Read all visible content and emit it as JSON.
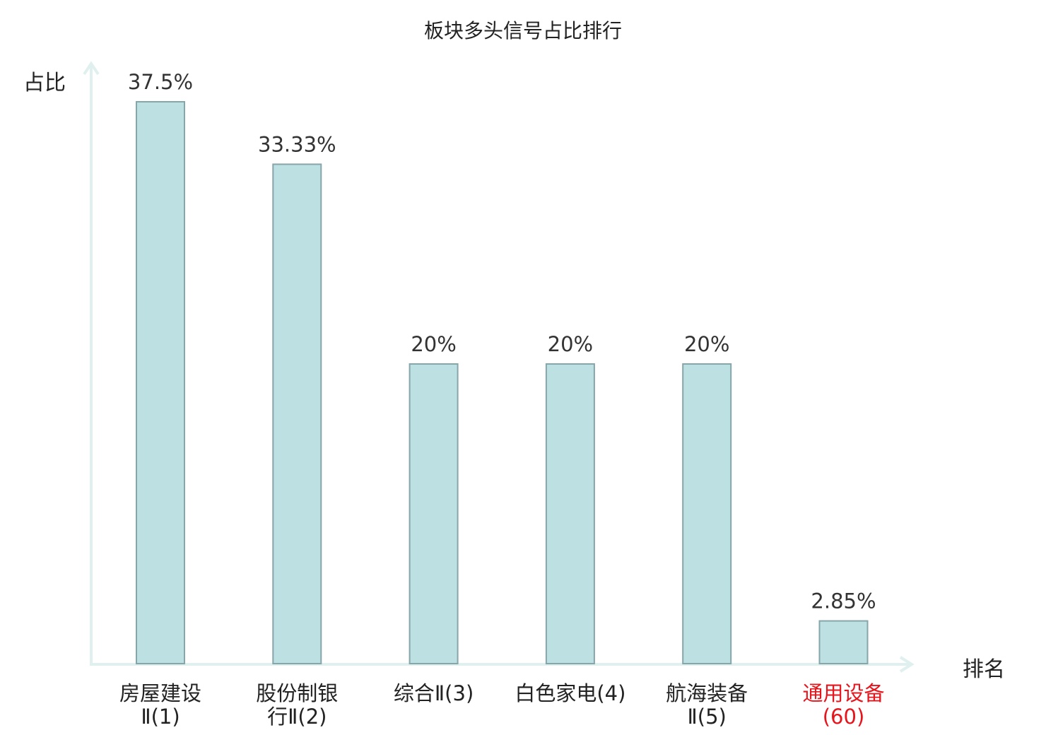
{
  "chart_data": {
    "type": "bar",
    "title": "板块多头信号占比排行",
    "xlabel": "排名",
    "ylabel": "占比",
    "ylim": [
      0,
      40
    ],
    "grid": false,
    "categories": [
      {
        "line1": "房屋建设",
        "line2": "Ⅱ(1)"
      },
      {
        "line1": "股份制银",
        "line2": "行Ⅱ(2)"
      },
      {
        "line1": "综合Ⅱ(3)",
        "line2": ""
      },
      {
        "line1": "白色家电(4)",
        "line2": ""
      },
      {
        "line1": "航海装备",
        "line2": "Ⅱ(5)"
      },
      {
        "line1": "通用设备(60)",
        "line2": ""
      }
    ],
    "values": [
      37.5,
      33.33,
      20,
      20,
      20,
      2.85
    ],
    "value_labels": [
      "37.5%",
      "33.33%",
      "20%",
      "20%",
      "20%",
      "2.85%"
    ],
    "highlight_index": 5,
    "colors": {
      "bar_fill": "#bde0e3",
      "bar_stroke": "#86a6a9",
      "axis": "#dff0ee",
      "highlight_text": "#e8141b"
    }
  }
}
